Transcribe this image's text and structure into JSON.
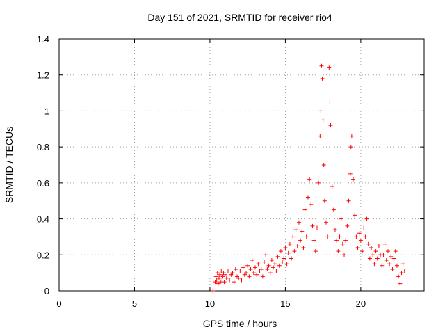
{
  "chart_data": {
    "type": "scatter",
    "title": "Day 151 of 2021, SRMTID for receiver rio4",
    "xlabel": "GPS time / hours",
    "ylabel": "SRMTID / TECUs",
    "xlim": [
      0,
      24.2
    ],
    "ylim": [
      0,
      1.4
    ],
    "x_ticks": [
      0,
      5,
      10,
      15,
      20
    ],
    "y_ticks": [
      0,
      0.2,
      0.4,
      0.6,
      0.8,
      1,
      1.2,
      1.4
    ],
    "x_tick_labels": [
      "0",
      "5",
      "10",
      "15",
      "20"
    ],
    "y_tick_labels": [
      "0",
      "0.2",
      "0.4",
      "0.6",
      "0.8",
      "1",
      "1.2",
      "1.4"
    ],
    "grid": true,
    "marker": "plus",
    "series": [
      {
        "name": "rio4",
        "color": "#ff0000",
        "points": [
          [
            10.2,
            0.0
          ],
          [
            10.35,
            0.05
          ],
          [
            10.4,
            0.08
          ],
          [
            10.45,
            0.06
          ],
          [
            10.5,
            0.1
          ],
          [
            10.55,
            0.04
          ],
          [
            10.6,
            0.07
          ],
          [
            10.65,
            0.09
          ],
          [
            10.7,
            0.05
          ],
          [
            10.75,
            0.11
          ],
          [
            10.8,
            0.06
          ],
          [
            10.85,
            0.08
          ],
          [
            10.9,
            0.1
          ],
          [
            10.95,
            0.05
          ],
          [
            11.0,
            0.09
          ],
          [
            11.1,
            0.07
          ],
          [
            11.2,
            0.11
          ],
          [
            11.3,
            0.06
          ],
          [
            11.4,
            0.09
          ],
          [
            11.5,
            0.1
          ],
          [
            11.6,
            0.05
          ],
          [
            11.7,
            0.12
          ],
          [
            11.8,
            0.08
          ],
          [
            11.9,
            0.07
          ],
          [
            12.0,
            0.11
          ],
          [
            12.1,
            0.06
          ],
          [
            12.2,
            0.13
          ],
          [
            12.3,
            0.09
          ],
          [
            12.4,
            0.1
          ],
          [
            12.5,
            0.14
          ],
          [
            12.6,
            0.08
          ],
          [
            12.7,
            0.12
          ],
          [
            12.8,
            0.17
          ],
          [
            12.9,
            0.1
          ],
          [
            13.0,
            0.13
          ],
          [
            13.1,
            0.09
          ],
          [
            13.2,
            0.15
          ],
          [
            13.3,
            0.11
          ],
          [
            13.4,
            0.12
          ],
          [
            13.5,
            0.08
          ],
          [
            13.6,
            0.16
          ],
          [
            13.7,
            0.2
          ],
          [
            13.8,
            0.12
          ],
          [
            13.9,
            0.14
          ],
          [
            14.0,
            0.1
          ],
          [
            14.1,
            0.17
          ],
          [
            14.2,
            0.13
          ],
          [
            14.3,
            0.15
          ],
          [
            14.4,
            0.11
          ],
          [
            14.5,
            0.19
          ],
          [
            14.6,
            0.14
          ],
          [
            14.7,
            0.22
          ],
          [
            14.8,
            0.16
          ],
          [
            14.9,
            0.18
          ],
          [
            15.0,
            0.24
          ],
          [
            15.1,
            0.15
          ],
          [
            15.2,
            0.21
          ],
          [
            15.3,
            0.26
          ],
          [
            15.4,
            0.18
          ],
          [
            15.5,
            0.3
          ],
          [
            15.6,
            0.22
          ],
          [
            15.7,
            0.34
          ],
          [
            15.8,
            0.25
          ],
          [
            15.9,
            0.38
          ],
          [
            16.0,
            0.28
          ],
          [
            16.1,
            0.33
          ],
          [
            16.2,
            0.24
          ],
          [
            16.3,
            0.45
          ],
          [
            16.4,
            0.3
          ],
          [
            16.5,
            0.52
          ],
          [
            16.6,
            0.62
          ],
          [
            16.7,
            0.48
          ],
          [
            16.8,
            0.36
          ],
          [
            16.9,
            0.28
          ],
          [
            17.0,
            0.22
          ],
          [
            17.1,
            0.35
          ],
          [
            17.2,
            0.6
          ],
          [
            17.3,
            0.86
          ],
          [
            17.35,
            1.0
          ],
          [
            17.4,
            1.25
          ],
          [
            17.45,
            1.18
          ],
          [
            17.5,
            0.95
          ],
          [
            17.55,
            0.7
          ],
          [
            17.6,
            0.5
          ],
          [
            17.7,
            0.38
          ],
          [
            17.8,
            0.3
          ],
          [
            17.9,
            1.24
          ],
          [
            17.95,
            1.05
          ],
          [
            18.0,
            0.92
          ],
          [
            18.1,
            0.58
          ],
          [
            18.2,
            0.45
          ],
          [
            18.3,
            0.34
          ],
          [
            18.4,
            0.28
          ],
          [
            18.5,
            0.22
          ],
          [
            18.6,
            0.3
          ],
          [
            18.7,
            0.4
          ],
          [
            18.8,
            0.26
          ],
          [
            18.9,
            0.2
          ],
          [
            19.0,
            0.28
          ],
          [
            19.1,
            0.36
          ],
          [
            19.2,
            0.5
          ],
          [
            19.3,
            0.65
          ],
          [
            19.35,
            0.8
          ],
          [
            19.4,
            0.86
          ],
          [
            19.5,
            0.62
          ],
          [
            19.6,
            0.42
          ],
          [
            19.7,
            0.3
          ],
          [
            19.8,
            0.24
          ],
          [
            19.9,
            0.32
          ],
          [
            20.0,
            0.28
          ],
          [
            20.1,
            0.22
          ],
          [
            20.2,
            0.35
          ],
          [
            20.3,
            0.3
          ],
          [
            20.4,
            0.4
          ],
          [
            20.5,
            0.26
          ],
          [
            20.6,
            0.18
          ],
          [
            20.7,
            0.24
          ],
          [
            20.8,
            0.2
          ],
          [
            20.9,
            0.15
          ],
          [
            21.0,
            0.22
          ],
          [
            21.1,
            0.18
          ],
          [
            21.2,
            0.25
          ],
          [
            21.3,
            0.2
          ],
          [
            21.4,
            0.14
          ],
          [
            21.5,
            0.2
          ],
          [
            21.6,
            0.26
          ],
          [
            21.7,
            0.17
          ],
          [
            21.8,
            0.22
          ],
          [
            21.9,
            0.15
          ],
          [
            22.0,
            0.19
          ],
          [
            22.1,
            0.12
          ],
          [
            22.2,
            0.18
          ],
          [
            22.3,
            0.22
          ],
          [
            22.4,
            0.14
          ],
          [
            22.5,
            0.08
          ],
          [
            22.6,
            0.04
          ],
          [
            22.7,
            0.1
          ],
          [
            22.8,
            0.15
          ],
          [
            22.9,
            0.11
          ]
        ]
      }
    ]
  }
}
